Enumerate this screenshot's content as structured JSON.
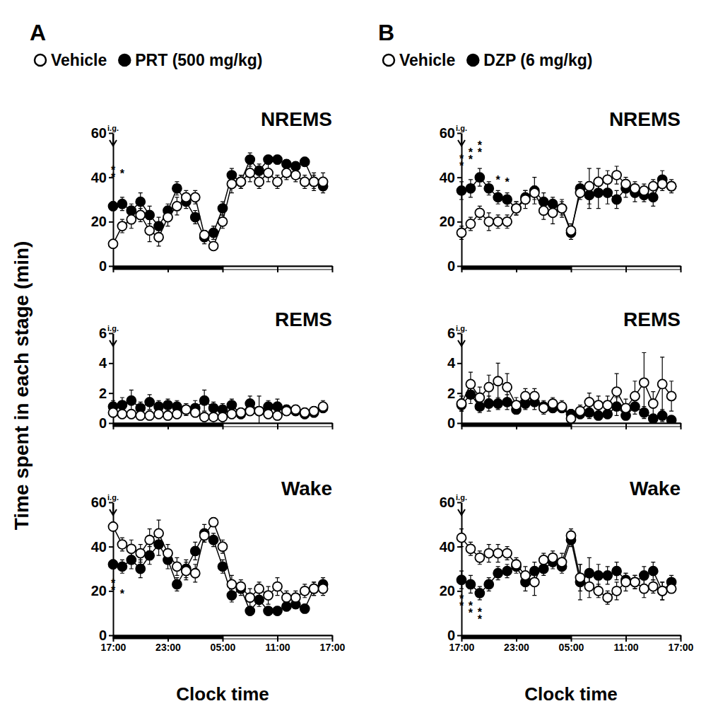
{
  "y_label": "Time spent in each stage (min)",
  "chart_data": [
    {
      "type": "line",
      "panel": "A",
      "title": "NREMS",
      "legend": "top",
      "tick_labels": "y",
      "x": [
        0,
        1,
        2,
        3,
        4,
        5,
        6,
        7,
        8,
        9,
        10,
        11,
        12,
        13,
        14,
        15,
        16,
        17,
        18,
        19,
        20,
        21,
        22,
        23
      ],
      "xlim": [
        0,
        24
      ],
      "xticks": [
        {
          "value": 0,
          "label": "17:00"
        },
        {
          "value": 6,
          "label": "23:00"
        },
        {
          "value": 12,
          "label": "05:00"
        },
        {
          "value": 18,
          "label": "11:00"
        },
        {
          "value": 24,
          "label": "17:00"
        }
      ],
      "ylim": [
        0,
        60
      ],
      "yticks": [
        0,
        20,
        40,
        60
      ],
      "dark_phase": [
        0,
        12
      ],
      "injection": {
        "x": 0,
        "label": "i.g."
      },
      "series": [
        {
          "name": "Vehicle",
          "color": "#ffffff",
          "marker": "circle",
          "line_style": "solid",
          "values": [
            10,
            18,
            21,
            23,
            16,
            13,
            22,
            27,
            31,
            31,
            14,
            9,
            20,
            37,
            38,
            42,
            38,
            42,
            38,
            42,
            41,
            38,
            38,
            38
          ],
          "errors": [
            1,
            3,
            4,
            3,
            5,
            4,
            4,
            4,
            3,
            3,
            2,
            1,
            3,
            4,
            3,
            4,
            3,
            4,
            3,
            3,
            3,
            3,
            4,
            4
          ]
        },
        {
          "name": "PRT (500 mg/kg)",
          "color": "#000000",
          "marker": "circle",
          "line_style": "solid",
          "values": [
            27,
            28,
            25,
            29,
            23,
            18,
            25,
            35,
            29,
            22,
            13,
            15,
            26,
            41,
            38,
            48,
            43,
            48,
            48,
            46,
            45,
            47,
            38,
            36
          ],
          "errors": [
            2,
            3,
            3,
            4,
            4,
            4,
            3,
            3,
            3,
            3,
            3,
            3,
            3,
            3,
            3,
            3,
            3,
            2,
            2,
            2,
            2,
            2,
            3,
            3
          ]
        }
      ],
      "annotations": [
        {
          "x": 0,
          "y": 40,
          "text": "**"
        },
        {
          "x": 1,
          "y": 40,
          "text": "*"
        }
      ]
    },
    {
      "type": "line",
      "title": "REMS",
      "tick_labels": "y",
      "x": [
        0,
        1,
        2,
        3,
        4,
        5,
        6,
        7,
        8,
        9,
        10,
        11,
        12,
        13,
        14,
        15,
        16,
        17,
        18,
        19,
        20,
        21,
        22,
        23
      ],
      "xlim": [
        0,
        24
      ],
      "xticks": [
        {
          "value": 0,
          "label": "17:00"
        },
        {
          "value": 6,
          "label": "23:00"
        },
        {
          "value": 12,
          "label": "05:00"
        },
        {
          "value": 18,
          "label": "11:00"
        },
        {
          "value": 24,
          "label": "17:00"
        }
      ],
      "ylim": [
        0,
        6
      ],
      "yticks": [
        0,
        2,
        4,
        6
      ],
      "dark_phase": [
        0,
        12
      ],
      "injection": {
        "x": 0,
        "label": "i.g."
      },
      "series": [
        {
          "name": "Vehicle",
          "color": "#ffffff",
          "marker": "circle",
          "line_style": "solid",
          "values": [
            0.7,
            0.6,
            0.6,
            0.5,
            0.5,
            0.6,
            0.5,
            0.6,
            0.9,
            0.7,
            0.4,
            0.4,
            0.4,
            0.6,
            0.7,
            0.8,
            0.8,
            0.6,
            0.5,
            0.8,
            0.9,
            0.7,
            0.8,
            1.1
          ],
          "errors": [
            0.3,
            0.3,
            0.3,
            0.3,
            0.3,
            0.3,
            0.3,
            0.3,
            0.4,
            0.3,
            0.3,
            0.2,
            0.3,
            0.3,
            0.3,
            0.3,
            0.3,
            0.3,
            0.3,
            0.3,
            0.3,
            0.3,
            0.3,
            0.4
          ]
        },
        {
          "name": "PRT (500 mg/kg)",
          "color": "#000000",
          "marker": "circle",
          "line_style": "solid",
          "values": [
            1.1,
            1.2,
            1.5,
            1.0,
            1.4,
            1.1,
            1.2,
            1.1,
            0.9,
            1.0,
            1.5,
            1.0,
            0.9,
            1.2,
            0.6,
            1.3,
            0.8,
            1.1,
            1.1,
            0.9,
            0.8,
            0.6,
            0.7,
            1.0
          ],
          "errors": [
            0.4,
            0.5,
            0.7,
            0.4,
            0.5,
            0.4,
            0.4,
            0.4,
            0.4,
            0.5,
            0.7,
            0.4,
            0.4,
            0.4,
            0.3,
            0.5,
            1.0,
            0.4,
            0.5,
            0.3,
            0.3,
            0.3,
            0.3,
            0.3
          ]
        }
      ]
    },
    {
      "type": "line",
      "title": "Wake",
      "x_label": "Clock time",
      "x": [
        0,
        1,
        2,
        3,
        4,
        5,
        6,
        7,
        8,
        9,
        10,
        11,
        12,
        13,
        14,
        15,
        16,
        17,
        18,
        19,
        20,
        21,
        22,
        23
      ],
      "xlim": [
        0,
        24
      ],
      "xticks": [
        {
          "value": 0,
          "label": "17:00"
        },
        {
          "value": 6,
          "label": "23:00"
        },
        {
          "value": 12,
          "label": "05:00"
        },
        {
          "value": 18,
          "label": "11:00"
        },
        {
          "value": 24,
          "label": "17:00"
        }
      ],
      "ylim": [
        0,
        60
      ],
      "yticks": [
        0,
        20,
        40,
        60
      ],
      "dark_phase": [
        0,
        12
      ],
      "injection": {
        "x": 0,
        "label": "i.g."
      },
      "series": [
        {
          "name": "Vehicle",
          "color": "#ffffff",
          "marker": "circle",
          "line_style": "solid",
          "values": [
            49,
            41,
            39,
            37,
            43,
            46,
            37,
            31,
            29,
            28,
            45,
            51,
            40,
            23,
            22,
            17,
            21,
            18,
            22,
            17,
            17,
            20,
            21,
            21
          ],
          "errors": [
            2,
            3,
            4,
            4,
            5,
            6,
            4,
            4,
            4,
            4,
            3,
            2,
            3,
            4,
            3,
            4,
            3,
            4,
            4,
            3,
            3,
            3,
            3,
            3
          ]
        },
        {
          "name": "PRT (500 mg/kg)",
          "color": "#000000",
          "marker": "circle",
          "line_style": "solid",
          "values": [
            32,
            31,
            34,
            30,
            36,
            41,
            34,
            23,
            30,
            38,
            46,
            43,
            31,
            18,
            21,
            11,
            16,
            11,
            11,
            13,
            14,
            12,
            21,
            23
          ],
          "errors": [
            2,
            3,
            4,
            4,
            4,
            5,
            4,
            3,
            4,
            4,
            4,
            3,
            3,
            3,
            3,
            2,
            3,
            2,
            2,
            2,
            2,
            2,
            3,
            3
          ]
        }
      ],
      "annotations": [
        {
          "x": 0,
          "y": 20,
          "text": "**"
        },
        {
          "x": 1,
          "y": 17,
          "text": "*"
        }
      ]
    },
    {
      "type": "line",
      "panel": "B",
      "title": "NREMS",
      "legend": "top",
      "tick_labels": "y",
      "x": [
        0,
        1,
        2,
        3,
        4,
        5,
        6,
        7,
        8,
        9,
        10,
        11,
        12,
        13,
        14,
        15,
        16,
        17,
        18,
        19,
        20,
        21,
        22,
        23
      ],
      "xlim": [
        0,
        24
      ],
      "xticks": [
        {
          "value": 0,
          "label": "17:00"
        },
        {
          "value": 6,
          "label": "23:00"
        },
        {
          "value": 12,
          "label": "05:00"
        },
        {
          "value": 18,
          "label": "11:00"
        },
        {
          "value": 24,
          "label": "17:00"
        }
      ],
      "ylim": [
        0,
        60
      ],
      "yticks": [
        0,
        20,
        40,
        60
      ],
      "dark_phase": [
        0,
        12
      ],
      "injection": {
        "x": 0,
        "label": "i.g."
      },
      "series": [
        {
          "name": "Vehicle",
          "color": "#ffffff",
          "marker": "circle",
          "line_style": "solid",
          "values": [
            15,
            19,
            24,
            20,
            20,
            20,
            26,
            30,
            33,
            25,
            24,
            26,
            16,
            33,
            36,
            38,
            39,
            41,
            37,
            35,
            34,
            36,
            37,
            36
          ],
          "errors": [
            3,
            3,
            3,
            4,
            3,
            3,
            3,
            4,
            3,
            4,
            5,
            4,
            3,
            3,
            8,
            6,
            4,
            4,
            3,
            3,
            3,
            3,
            3,
            2
          ]
        },
        {
          "name": "DZP (6 mg/kg)",
          "color": "#000000",
          "marker": "circle",
          "line_style": "solid",
          "values": [
            34,
            35,
            40,
            35,
            31,
            30,
            26,
            31,
            34,
            29,
            28,
            26,
            15,
            35,
            32,
            33,
            33,
            30,
            35,
            33,
            32,
            31,
            39,
            36
          ],
          "errors": [
            4,
            4,
            4,
            3,
            3,
            3,
            3,
            3,
            6,
            4,
            3,
            3,
            3,
            3,
            6,
            7,
            5,
            4,
            4,
            4,
            3,
            4,
            4,
            3
          ]
        }
      ],
      "annotations": [
        {
          "x": 0,
          "y": 45,
          "text": "**"
        },
        {
          "x": 1,
          "y": 48,
          "text": "**"
        },
        {
          "x": 2,
          "y": 51,
          "text": "**"
        },
        {
          "x": 4,
          "y": 37,
          "text": "*"
        },
        {
          "x": 5,
          "y": 36,
          "text": "*"
        }
      ]
    },
    {
      "type": "line",
      "title": "REMS",
      "tick_labels": "y",
      "x": [
        0,
        1,
        2,
        3,
        4,
        5,
        6,
        7,
        8,
        9,
        10,
        11,
        12,
        13,
        14,
        15,
        16,
        17,
        18,
        19,
        20,
        21,
        22,
        23
      ],
      "xlim": [
        0,
        24
      ],
      "xticks": [
        {
          "value": 0,
          "label": "17:00"
        },
        {
          "value": 6,
          "label": "23:00"
        },
        {
          "value": 12,
          "label": "05:00"
        },
        {
          "value": 18,
          "label": "11:00"
        },
        {
          "value": 24,
          "label": "17:00"
        }
      ],
      "ylim": [
        0,
        6
      ],
      "yticks": [
        0,
        2,
        4,
        6
      ],
      "dark_phase": [
        0,
        12
      ],
      "injection": {
        "x": 0,
        "label": "i.g."
      },
      "series": [
        {
          "name": "Vehicle",
          "color": "#ffffff",
          "marker": "circle",
          "line_style": "solid",
          "values": [
            1.3,
            2.6,
            1.7,
            2.4,
            2.8,
            2.4,
            1.2,
            1.8,
            1.8,
            1.0,
            1.3,
            1.1,
            0.3,
            0.8,
            1.4,
            1.2,
            1.2,
            2.1,
            1.0,
            1.8,
            2.7,
            1.3,
            2.6,
            1.8
          ],
          "errors": [
            0.5,
            0.8,
            0.7,
            0.8,
            1.2,
            0.9,
            0.5,
            0.5,
            0.5,
            0.4,
            0.4,
            0.4,
            0.2,
            0.4,
            0.6,
            0.6,
            0.6,
            1.2,
            0.6,
            1.0,
            2.0,
            0.8,
            1.8,
            1.0
          ]
        },
        {
          "name": "DZP (6 mg/kg)",
          "color": "#000000",
          "marker": "circle",
          "line_style": "solid",
          "values": [
            1.2,
            1.9,
            1.1,
            1.3,
            1.3,
            1.4,
            0.9,
            1.3,
            1.4,
            1.1,
            1.0,
            1.0,
            0.6,
            0.6,
            0.7,
            0.5,
            0.6,
            1.1,
            0.5,
            1.1,
            0.7,
            0.3,
            0.5,
            0.2
          ],
          "errors": [
            0.4,
            0.6,
            0.4,
            0.5,
            0.4,
            0.5,
            0.3,
            0.4,
            0.5,
            0.4,
            0.3,
            0.3,
            0.3,
            0.3,
            0.4,
            0.3,
            0.3,
            0.6,
            0.3,
            0.5,
            0.4,
            0.2,
            0.4,
            0.2
          ]
        }
      ]
    },
    {
      "type": "line",
      "title": "Wake",
      "x_label": "Clock time",
      "x": [
        0,
        1,
        2,
        3,
        4,
        5,
        6,
        7,
        8,
        9,
        10,
        11,
        12,
        13,
        14,
        15,
        16,
        17,
        18,
        19,
        20,
        21,
        22,
        23
      ],
      "xlim": [
        0,
        24
      ],
      "xticks": [
        {
          "value": 0,
          "label": "17:00"
        },
        {
          "value": 6,
          "label": "23:00"
        },
        {
          "value": 12,
          "label": "05:00"
        },
        {
          "value": 18,
          "label": "11:00"
        },
        {
          "value": 24,
          "label": "17:00"
        }
      ],
      "ylim": [
        0,
        60
      ],
      "yticks": [
        0,
        20,
        40,
        60
      ],
      "dark_phase": [
        0,
        12
      ],
      "injection": {
        "x": 0,
        "label": "i.g."
      },
      "series": [
        {
          "name": "Vehicle",
          "color": "#ffffff",
          "marker": "circle",
          "line_style": "solid",
          "values": [
            44,
            39,
            35,
            37,
            37,
            37,
            32,
            27,
            24,
            34,
            35,
            33,
            45,
            26,
            22,
            20,
            17,
            20,
            24,
            24,
            21,
            22,
            20,
            21
          ],
          "errors": [
            4,
            3,
            3,
            4,
            4,
            3,
            3,
            4,
            6,
            3,
            3,
            4,
            3,
            6,
            5,
            3,
            3,
            4,
            4,
            3,
            4,
            3,
            4,
            2
          ]
        },
        {
          "name": "DZP (6 mg/kg)",
          "color": "#000000",
          "marker": "circle",
          "line_style": "solid",
          "values": [
            25,
            23,
            19,
            23,
            28,
            29,
            31,
            24,
            29,
            30,
            33,
            31,
            43,
            24,
            28,
            27,
            27,
            29,
            25,
            24,
            27,
            29,
            20,
            24
          ],
          "errors": [
            4,
            4,
            3,
            3,
            3,
            3,
            3,
            4,
            4,
            3,
            3,
            3,
            3,
            8,
            7,
            5,
            4,
            4,
            3,
            3,
            4,
            4,
            4,
            3
          ]
        }
      ],
      "annotations": [
        {
          "x": 0,
          "y": 13,
          "text": "**"
        },
        {
          "x": 1,
          "y": 10,
          "text": "**"
        },
        {
          "x": 2,
          "y": 7,
          "text": "**"
        }
      ]
    }
  ]
}
